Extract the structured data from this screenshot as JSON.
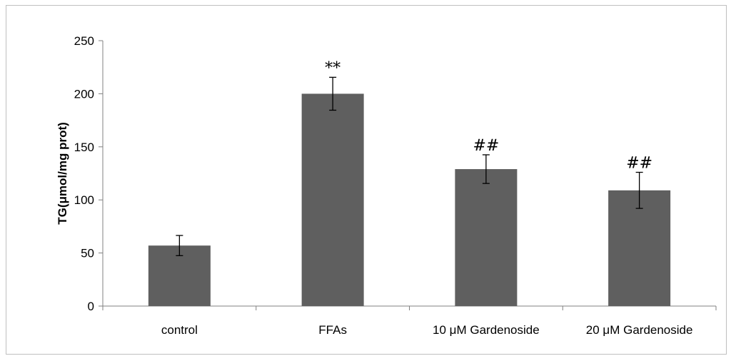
{
  "chart_data": {
    "type": "bar",
    "title": "",
    "xlabel": "",
    "ylabel": "TG(μmol/mg prot)",
    "ylim": [
      0,
      250
    ],
    "yticks": [
      "0",
      "50",
      "100",
      "150",
      "200",
      "250"
    ],
    "categories": [
      "control",
      "FFAs",
      "10 μM Gardenoside",
      "20 μM Gardenoside"
    ],
    "values": [
      57,
      200,
      129,
      109
    ],
    "errors": [
      9.5,
      15.5,
      13.5,
      17
    ],
    "annotations": [
      "",
      "**",
      "##",
      "##"
    ],
    "grid": false,
    "legend": "none",
    "colors": {
      "bar": "#5f5f5f",
      "axis": "#808080",
      "error": "#000000"
    }
  }
}
